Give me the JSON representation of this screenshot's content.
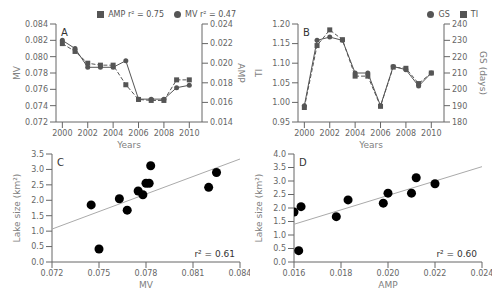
{
  "chart_data": [
    {
      "type": "line",
      "annotations": [
        "A"
      ],
      "x_label": "Years",
      "y_label": "MV",
      "y2_label": "AMP",
      "x": [
        2000,
        2001,
        2002,
        2003,
        2004,
        2005,
        2006,
        2007,
        2008,
        2009,
        2010
      ],
      "xlim": [
        1999.5,
        2011
      ],
      "xticks": [
        2000,
        2002,
        2004,
        2006,
        2008,
        2010
      ],
      "ylim": [
        0.072,
        0.084
      ],
      "yticks": [
        0.072,
        0.074,
        0.076,
        0.078,
        {
          "value": 0.08,
          "label": "0.080"
        },
        0.082,
        0.084
      ],
      "y2lim": [
        0.014,
        0.024
      ],
      "y2ticks": [
        0.014,
        0.016,
        0.018,
        {
          "value": 0.02,
          "label": "0.020"
        },
        0.022,
        0.024
      ],
      "legend": "upper right",
      "grid": false,
      "series": [
        {
          "name": "MV r² = 0.47",
          "color": "#555555",
          "marker": "circle",
          "line_style": "solid",
          "values": [
            0.082,
            0.081,
            0.0787,
            0.0787,
            0.0787,
            0.0795,
            0.0748,
            0.0748,
            0.0748,
            0.0762,
            0.0765
          ]
        },
        {
          "name": "AMP r² = 0.75",
          "color": "#555555",
          "marker": "square",
          "line_style": "dashed",
          "axis": "y2",
          "values": [
            0.022,
            0.0212,
            0.02,
            0.0198,
            0.0198,
            0.0178,
            0.0163,
            0.0162,
            0.0162,
            0.0183,
            0.0183
          ]
        }
      ]
    },
    {
      "type": "line",
      "annotations": [
        "B"
      ],
      "x_label": "Years",
      "y_label": "TI",
      "y2_label": "GS (days)",
      "x": [
        2000,
        2001,
        2002,
        2003,
        2004,
        2005,
        2006,
        2007,
        2008,
        2009,
        2010
      ],
      "xlim": [
        1999.5,
        2011
      ],
      "xticks": [
        2000,
        2002,
        2004,
        2006,
        2008,
        2010
      ],
      "ylim": [
        0.95,
        1.2
      ],
      "yticks": [
        0.95,
        {
          "value": 1,
          "label": "1.00"
        },
        1.05,
        {
          "value": 1.1,
          "label": "1.10"
        },
        1.15,
        {
          "value": 1.2,
          "label": "1.20"
        }
      ],
      "y2lim": [
        180,
        240
      ],
      "y2ticks": [
        180,
        190,
        200,
        210,
        220,
        230,
        240
      ],
      "legend": "upper right",
      "grid": false,
      "series": [
        {
          "name": "TI",
          "color": "#555555",
          "marker": "square",
          "line_style": "dashed",
          "values": [
            0.987,
            1.145,
            1.185,
            1.16,
            1.067,
            1.067,
            0.99,
            1.09,
            1.087,
            1.048,
            1.075
          ]
        },
        {
          "name": "GS",
          "color": "#555555",
          "marker": "circle",
          "line_style": "solid",
          "axis": "y2",
          "values": [
            190,
            230,
            232,
            230,
            210,
            210,
            190,
            214,
            212,
            202,
            210
          ]
        }
      ]
    },
    {
      "type": "scatter",
      "annotations": [
        "C",
        "r² = 0.61"
      ],
      "x_label": "MV",
      "y_label": "Lake size (km²)",
      "xlim": [
        0.072,
        0.084
      ],
      "xticks": [
        0.072,
        0.075,
        0.078,
        0.081,
        0.084
      ],
      "ylim": [
        0,
        3.5
      ],
      "yticks": [
        {
          "value": 0,
          "label": "0.0"
        },
        0.5,
        {
          "value": 1,
          "label": "1.0"
        },
        1.5,
        {
          "value": 2,
          "label": "2.0"
        },
        2.5,
        {
          "value": 3,
          "label": "3.0"
        },
        3.5
      ],
      "grid": false,
      "series": [
        {
          "type": "scatter",
          "color": "black",
          "marker": "circle",
          "x": [
            0.0745,
            0.075,
            0.0763,
            0.0768,
            0.0775,
            0.0778,
            0.078,
            0.0782,
            0.0783,
            0.082,
            0.0825
          ],
          "values": [
            1.85,
            0.42,
            2.05,
            1.68,
            2.3,
            2.18,
            2.55,
            2.55,
            3.12,
            2.42,
            2.9
          ]
        },
        {
          "type": "line",
          "color": "#aaaaaa",
          "line_style": "solid",
          "x": [
            0.072,
            0.084
          ],
          "values": [
            1.0674,
            3.3377
          ]
        }
      ]
    },
    {
      "type": "scatter",
      "annotations": [
        "D",
        "r² = 0.60"
      ],
      "x_label": "AMP",
      "y_label": "Lake size (km²)",
      "xlim": [
        0.016,
        0.024
      ],
      "xticks": [
        0.016,
        0.018,
        {
          "value": 0.02,
          "label": "0.020"
        },
        0.022,
        0.024
      ],
      "ylim": [
        0,
        4
      ],
      "yticks": [
        {
          "value": 0,
          "label": "0.0"
        },
        0.5,
        {
          "value": 1,
          "label": "1.0"
        },
        1.5,
        {
          "value": 2,
          "label": "2.0"
        },
        2.5,
        {
          "value": 3,
          "label": "3.0"
        },
        3.5,
        {
          "value": 4,
          "label": "4.0"
        }
      ],
      "grid": false,
      "series": [
        {
          "type": "scatter",
          "color": "black",
          "marker": "circle",
          "x": [
            0.016,
            0.0162,
            0.0163,
            0.0178,
            0.0183,
            0.0198,
            0.02,
            0.021,
            0.0212,
            0.022
          ],
          "values": [
            1.85,
            0.42,
            2.05,
            1.68,
            2.3,
            2.18,
            2.55,
            2.55,
            3.12,
            2.9
          ]
        },
        {
          "type": "line",
          "color": "#aaaaaa",
          "line_style": "solid",
          "x": [
            0.016,
            0.024
          ],
          "values": [
            1.3971,
            3.531
          ]
        }
      ]
    }
  ]
}
